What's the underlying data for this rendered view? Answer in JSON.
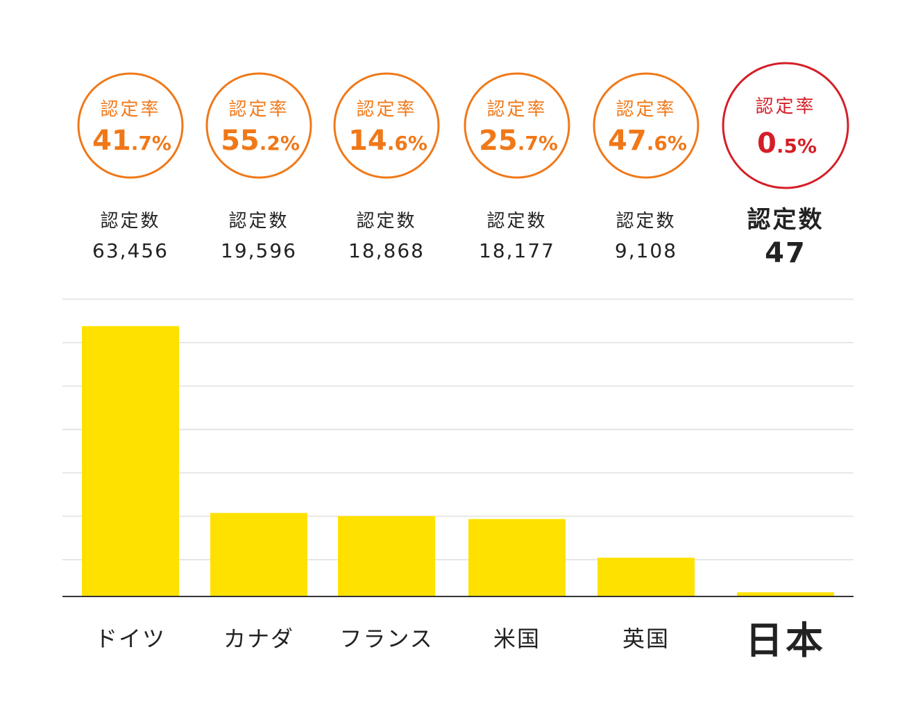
{
  "chart_data": {
    "type": "bar",
    "rate_label": "認定率",
    "count_label": "認定数",
    "percent_sign": "%",
    "categories": [
      "ドイツ",
      "カナダ",
      "フランス",
      "米国",
      "英国",
      "日本"
    ],
    "rates": [
      {
        "int": "41",
        "dec": ".7"
      },
      {
        "int": "55",
        "dec": ".2"
      },
      {
        "int": "14",
        "dec": ".6"
      },
      {
        "int": "25",
        "dec": ".7"
      },
      {
        "int": "47",
        "dec": ".6"
      },
      {
        "int": "0",
        "dec": ".5"
      }
    ],
    "count_labels": [
      "63,456",
      "19,596",
      "18,868",
      "18,177",
      "9,108",
      "47"
    ],
    "values": [
      63456,
      19596,
      18868,
      18177,
      9108,
      47
    ],
    "highlight_index": 5,
    "ylim": [
      0,
      70000
    ],
    "grid": true,
    "colors": {
      "bar": "#ffe100",
      "circle": "#f07818",
      "highlight": "#d41e26",
      "grid": "#e6e6e6",
      "axis": "#333333",
      "text": "#222222"
    }
  }
}
